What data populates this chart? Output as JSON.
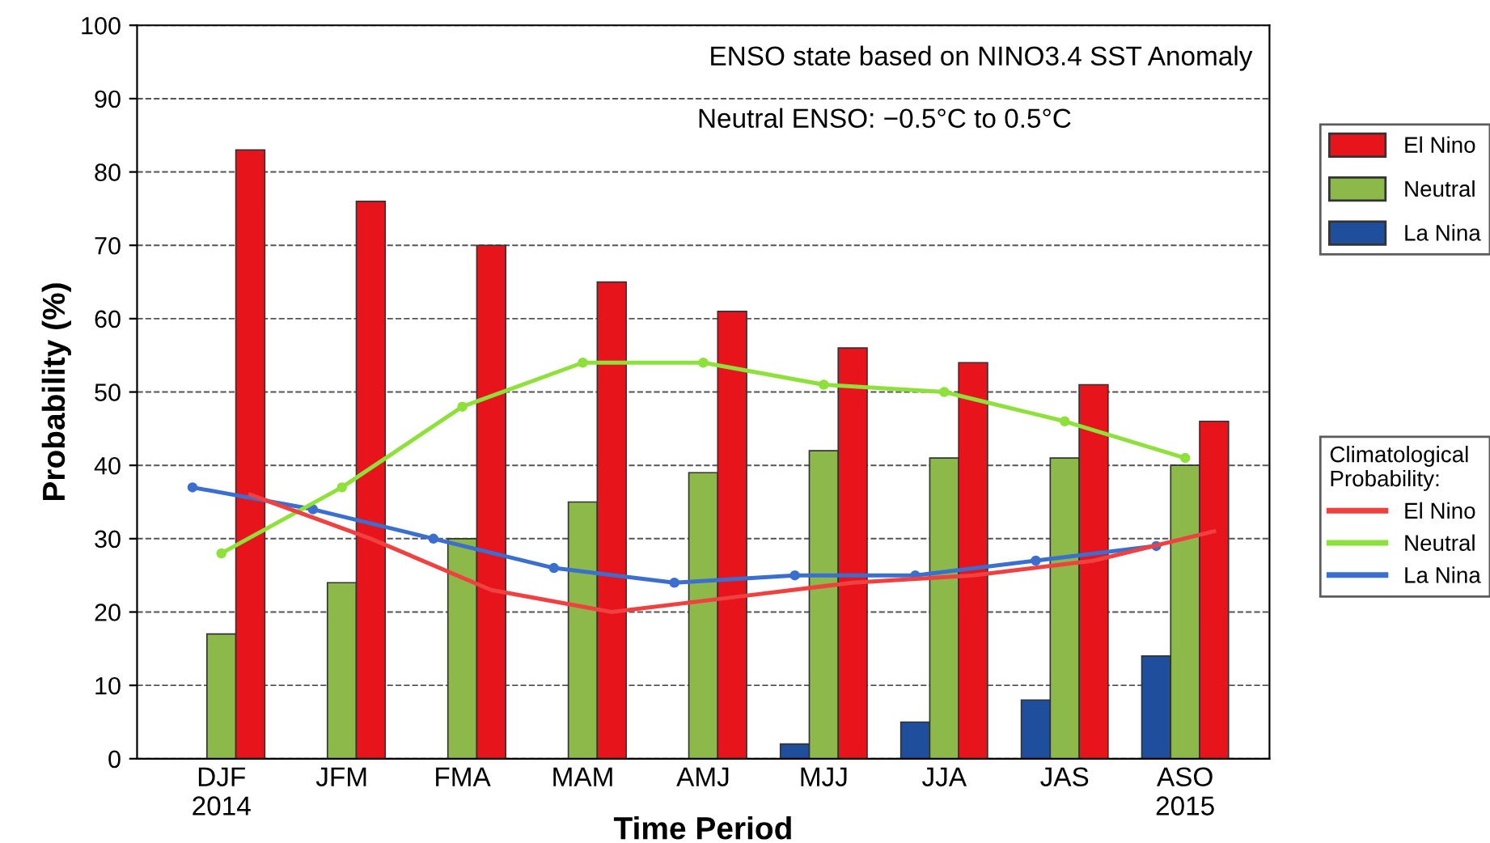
{
  "chart_data": {
    "type": "bar",
    "xlabel": "Time Period",
    "ylabel": "Probability (%)",
    "categories": [
      "DJF\n2014",
      "JFM",
      "FMA",
      "MAM",
      "AMJ",
      "MJJ",
      "JJA",
      "JAS",
      "ASO\n2015"
    ],
    "series": [
      {
        "name": "La Nina",
        "color": "#1f4e9c",
        "values": [
          0,
          0,
          0,
          0,
          0,
          2,
          5,
          8,
          14
        ]
      },
      {
        "name": "Neutral",
        "color": "#8db84a",
        "values": [
          17,
          24,
          30,
          35,
          39,
          42,
          41,
          41,
          40
        ]
      },
      {
        "name": "El Nino",
        "color": "#e8141c",
        "values": [
          83,
          76,
          70,
          65,
          61,
          56,
          54,
          51,
          46
        ]
      },
      {
        "name": "La Nina",
        "type": "line",
        "color": "#3a6fd0",
        "marker": "circle",
        "values": [
          37,
          34,
          30,
          26,
          24,
          25,
          25,
          27,
          29
        ]
      },
      {
        "name": "Neutral",
        "type": "line",
        "color": "#8ee03a",
        "marker": "circle",
        "values": [
          28,
          37,
          48,
          54,
          54,
          51,
          50,
          46,
          41
        ]
      },
      {
        "name": "El Nino",
        "type": "line",
        "color": "#f04040",
        "marker": "none",
        "values": [
          36,
          30,
          23,
          20,
          22,
          24,
          25,
          27,
          31
        ]
      }
    ],
    "legend_title": "Climatological\nProbability:",
    "annotations": [
      "ENSO state based on NINO3.4 SST Anomaly",
      "Neutral ENSO: −0.5°C to 0.5°C"
    ],
    "ylim": [
      0,
      100
    ],
    "yticks": [
      0,
      10,
      20,
      30,
      40,
      50,
      60,
      70,
      80,
      90,
      100
    ],
    "grid": "y",
    "legend": "right"
  }
}
